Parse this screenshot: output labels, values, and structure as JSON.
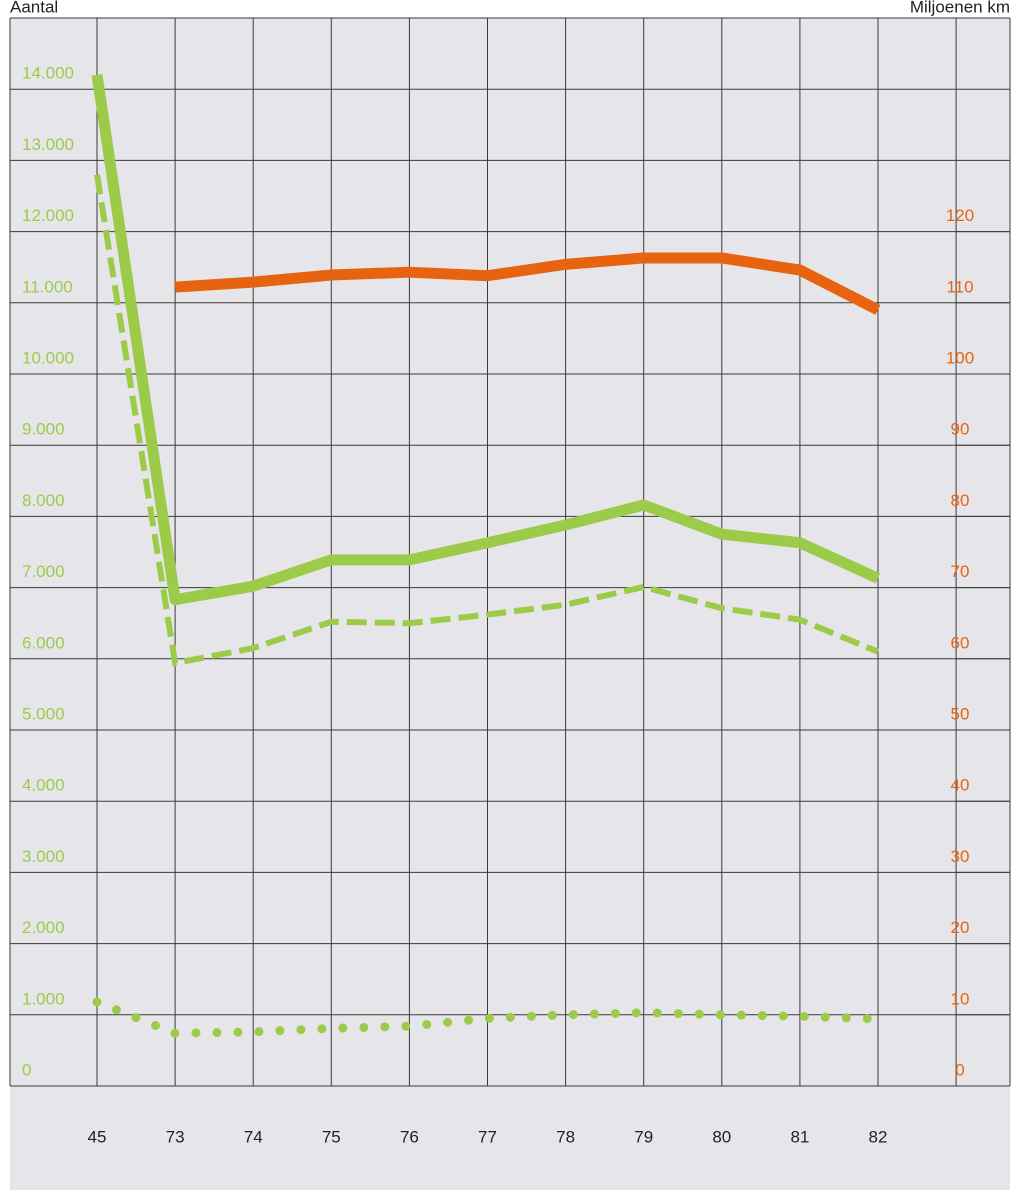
{
  "chart_data": {
    "type": "line",
    "y_label": "Aantal",
    "y2_label": "Miljoenen km",
    "categories": [
      "45",
      "73",
      "74",
      "75",
      "76",
      "77",
      "78",
      "79",
      "80",
      "81",
      "82"
    ],
    "series": [
      {
        "color": "#e8630f",
        "style": "solid",
        "axis": "y2",
        "values": [
          null,
          112.2,
          112.9,
          113.9,
          114.3,
          113.8,
          115.4,
          116.3,
          116.3,
          114.6,
          109
        ]
      },
      {
        "color": "#9ccb4a",
        "style": "solid",
        "values": [
          14200,
          6830,
          7020,
          7390,
          7390,
          7630,
          7880,
          8160,
          7750,
          7630,
          7130
        ]
      },
      {
        "color": "#9ccb4a",
        "style": "dashed",
        "values": [
          12800,
          5940,
          6150,
          6520,
          6500,
          6620,
          6760,
          7010,
          6710,
          6550,
          6100
        ]
      },
      {
        "color": "#9ccb4a",
        "style": "dotted",
        "values": [
          1180,
          740,
          760,
          810,
          840,
          950,
          1000,
          1030,
          1000,
          980,
          940
        ]
      }
    ],
    "ylim": [
      0,
      15000
    ],
    "yticks": [
      0,
      {
        "value": 1000,
        "label": "1.000"
      },
      {
        "value": 2000,
        "label": "2.000"
      },
      {
        "value": 3000,
        "label": "3.000"
      },
      {
        "value": 4000,
        "label": "4.000"
      },
      {
        "value": 5000,
        "label": "5.000"
      },
      {
        "value": 6000,
        "label": "6.000"
      },
      {
        "value": 7000,
        "label": "7.000"
      },
      {
        "value": 8000,
        "label": "8.000"
      },
      {
        "value": 9000,
        "label": "9.000"
      },
      {
        "value": 10000,
        "label": "10.000"
      },
      {
        "value": 11000,
        "label": "11.000"
      },
      {
        "value": 12000,
        "label": "12.000"
      },
      {
        "value": 13000,
        "label": "13.000"
      },
      {
        "value": 14000,
        "label": "14.000"
      }
    ],
    "y2lim": [
      0,
      150
    ],
    "y2ticks": [
      0,
      10,
      20,
      30,
      40,
      50,
      60,
      70,
      80,
      90,
      100,
      110,
      120
    ],
    "ytick_color": "#9ccb4a",
    "y2tick_color": "#e8630f",
    "grid": true
  }
}
